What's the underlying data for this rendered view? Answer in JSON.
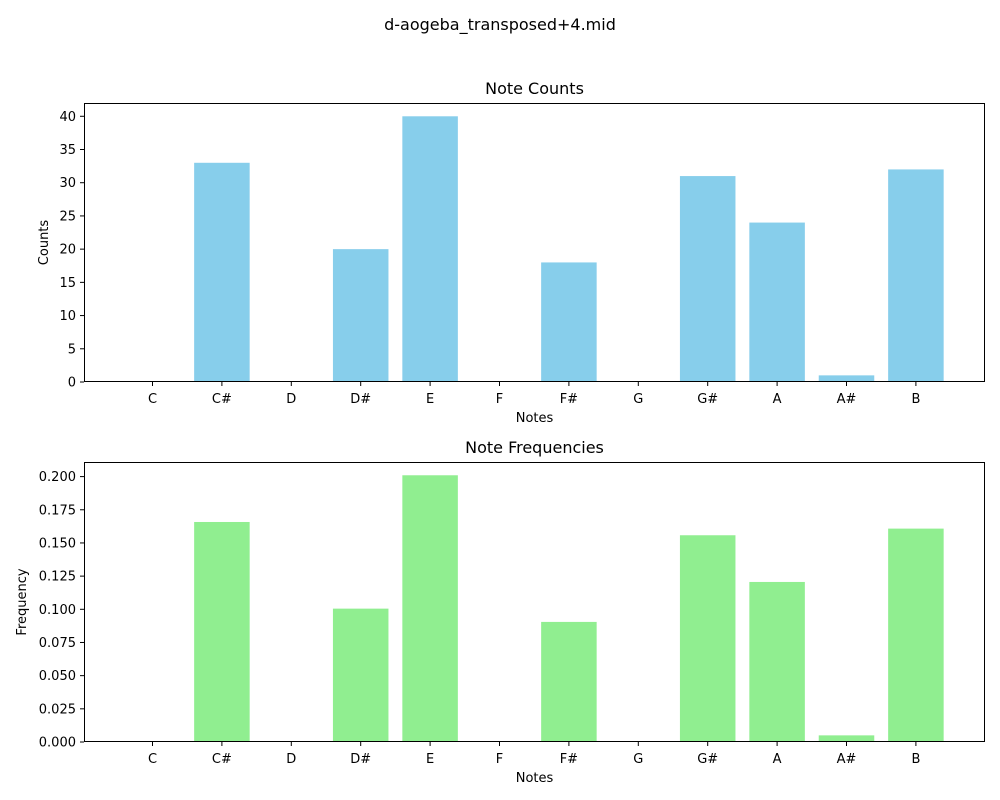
{
  "figure": {
    "title": "d-aogeba_transposed+4.mid"
  },
  "chart_data": [
    {
      "type": "bar",
      "title": "Note Counts",
      "xlabel": "Notes",
      "ylabel": "Counts",
      "categories": [
        "C",
        "C#",
        "D",
        "D#",
        "E",
        "F",
        "F#",
        "G",
        "G#",
        "A",
        "A#",
        "B"
      ],
      "values": [
        0,
        33,
        0,
        20,
        40,
        0,
        18,
        0,
        31,
        24,
        1,
        32
      ],
      "ylim": [
        0,
        42
      ],
      "yticks": [
        0,
        5,
        10,
        15,
        20,
        25,
        30,
        35,
        40
      ],
      "ytick_labels": [
        "0",
        "5",
        "10",
        "15",
        "20",
        "25",
        "30",
        "35",
        "40"
      ],
      "color": "#87ceeb",
      "grid": false,
      "legend": "none"
    },
    {
      "type": "bar",
      "title": "Note Frequencies",
      "xlabel": "Notes",
      "ylabel": "Frequency",
      "categories": [
        "C",
        "C#",
        "D",
        "D#",
        "E",
        "F",
        "F#",
        "G",
        "G#",
        "A",
        "A#",
        "B"
      ],
      "values": [
        0,
        0.1658,
        0,
        0.1005,
        0.201,
        0,
        0.0905,
        0,
        0.1558,
        0.1206,
        0.005,
        0.1608
      ],
      "ylim": [
        0,
        0.211
      ],
      "yticks": [
        0,
        0.025,
        0.05,
        0.075,
        0.1,
        0.125,
        0.15,
        0.175,
        0.2
      ],
      "ytick_labels": [
        "0.000",
        "0.025",
        "0.050",
        "0.075",
        "0.100",
        "0.125",
        "0.150",
        "0.175",
        "0.200"
      ],
      "color": "#90ee90",
      "grid": false,
      "legend": "none"
    }
  ]
}
